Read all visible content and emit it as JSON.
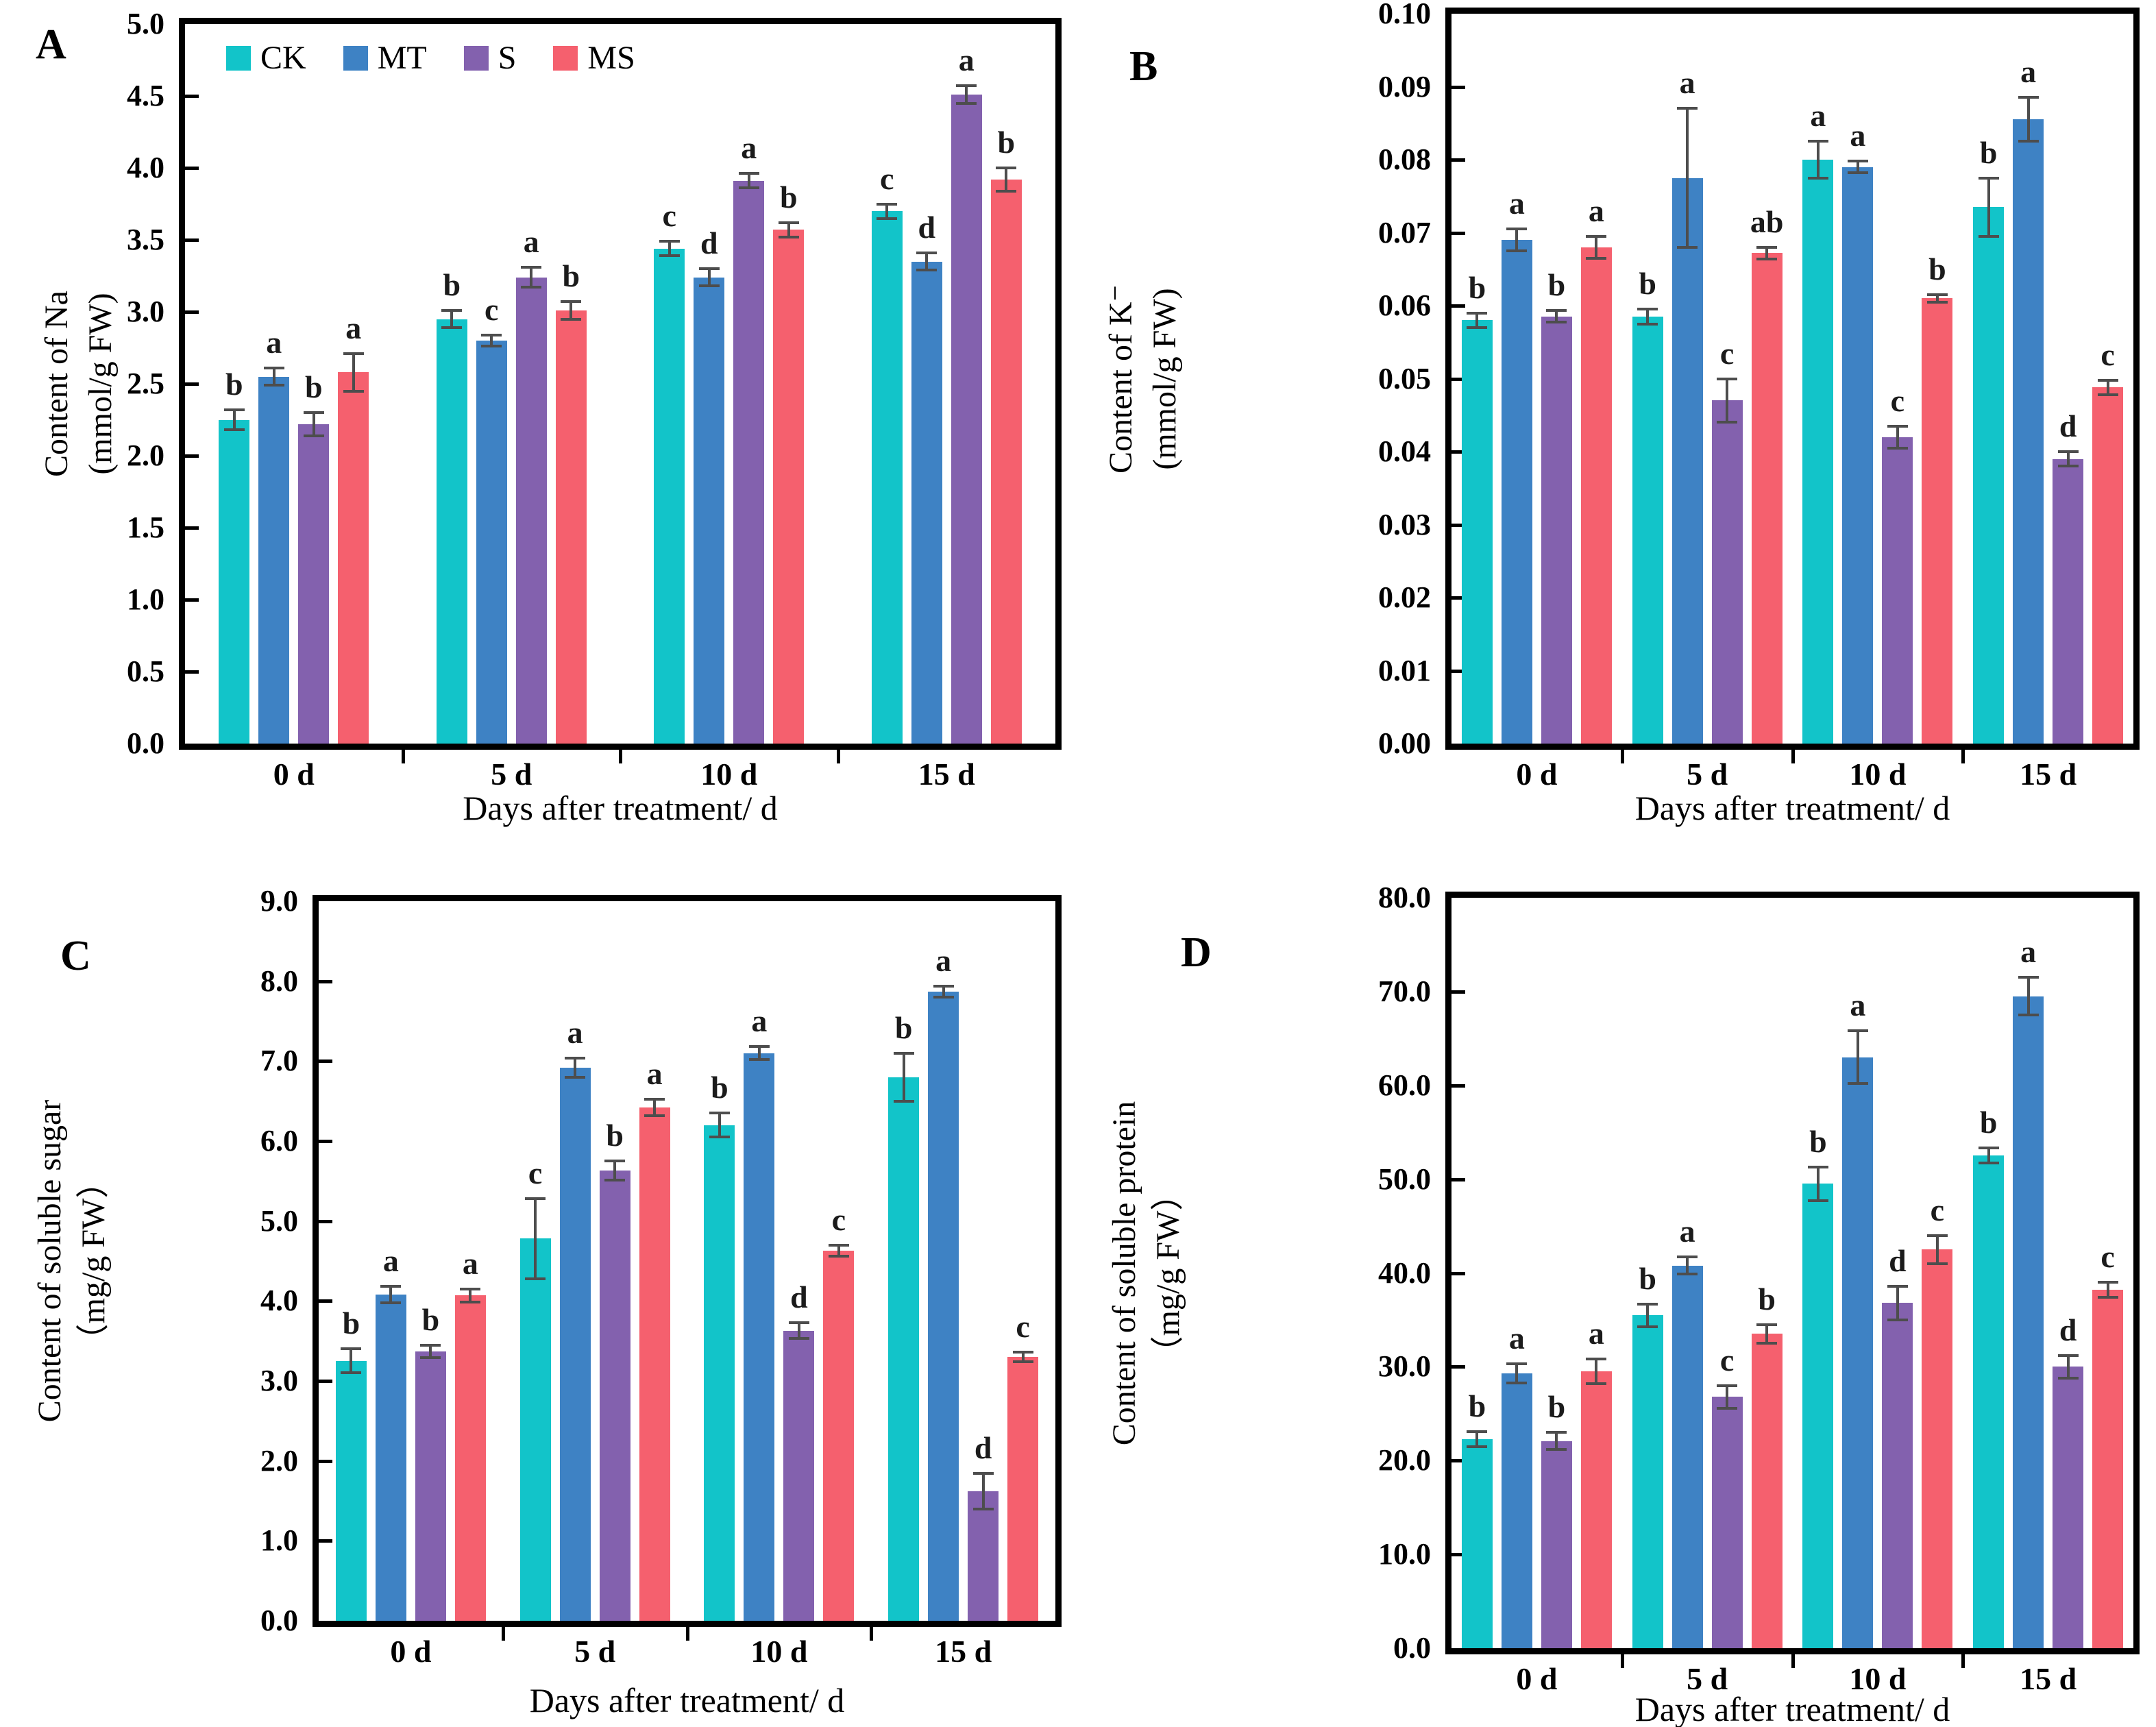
{
  "figure": {
    "background": "#ffffff",
    "panel_letters": [
      "A",
      "B",
      "C",
      "D"
    ]
  },
  "colors": {
    "frame": "#000000",
    "error_bar": "#4d4d4d",
    "sig_letter": "#1b1b1b",
    "background": "#ffffff"
  },
  "legend": {
    "location": "panel A top-left",
    "items": [
      {
        "label": "CK",
        "color": "#12C4C9"
      },
      {
        "label": "MT",
        "color": "#3E82C4"
      },
      {
        "label": "S",
        "color": "#8361AE"
      },
      {
        "label": "MS",
        "color": "#F5606E"
      }
    ]
  },
  "chart_data": [
    {
      "id": "A",
      "type": "bar",
      "title": "",
      "ylabel": [
        "Content of Na",
        "(mmol/g FW)"
      ],
      "xlabel": "Days after treatment/ d",
      "categories": [
        "0 d",
        "5 d",
        "10 d",
        "15 d"
      ],
      "ylim": [
        0,
        5.0
      ],
      "ytick_step": 0.5,
      "ytick_decimals": 1,
      "grid": false,
      "legend_position": "top-left",
      "series": [
        {
          "name": "CK",
          "color": "#12C4C9",
          "values": [
            2.25,
            2.95,
            3.44,
            3.7
          ],
          "errors": [
            0.07,
            0.06,
            0.05,
            0.05
          ],
          "sig_letters": [
            "b",
            "b",
            "c",
            "c"
          ]
        },
        {
          "name": "MT",
          "color": "#3E82C4",
          "values": [
            2.55,
            2.8,
            3.24,
            3.35
          ],
          "errors": [
            0.06,
            0.04,
            0.06,
            0.06
          ],
          "sig_letters": [
            "a",
            "c",
            "d",
            "d"
          ]
        },
        {
          "name": "S",
          "color": "#8361AE",
          "values": [
            2.22,
            3.24,
            3.91,
            4.51
          ],
          "errors": [
            0.08,
            0.07,
            0.05,
            0.06
          ],
          "sig_letters": [
            "b",
            "a",
            "a",
            "a"
          ]
        },
        {
          "name": "MS",
          "color": "#F5606E",
          "values": [
            2.58,
            3.01,
            3.57,
            3.92
          ],
          "errors": [
            0.13,
            0.06,
            0.05,
            0.08
          ],
          "sig_letters": [
            "a",
            "b",
            "b",
            "b"
          ]
        }
      ]
    },
    {
      "id": "B",
      "type": "bar",
      "title": "",
      "ylabel": [
        "Content of K⁻",
        "(mmol/g FW)"
      ],
      "xlabel": "Days after treatment/ d",
      "categories": [
        "0 d",
        "5 d",
        "10 d",
        "15 d"
      ],
      "ylim": [
        0,
        0.1
      ],
      "ytick_step": 0.01,
      "ytick_decimals": 2,
      "grid": false,
      "series": [
        {
          "name": "CK",
          "color": "#12C4C9",
          "values": [
            0.058,
            0.0585,
            0.08,
            0.0735
          ],
          "errors": [
            0.001,
            0.001,
            0.0025,
            0.004
          ],
          "sig_letters": [
            "b",
            "b",
            "a",
            "b"
          ]
        },
        {
          "name": "MT",
          "color": "#3E82C4",
          "values": [
            0.069,
            0.0775,
            0.079,
            0.0855
          ],
          "errors": [
            0.0015,
            0.0095,
            0.0008,
            0.003
          ],
          "sig_letters": [
            "a",
            "a",
            "a",
            "a"
          ]
        },
        {
          "name": "S",
          "color": "#8361AE",
          "values": [
            0.0585,
            0.047,
            0.042,
            0.039
          ],
          "errors": [
            0.0008,
            0.003,
            0.0015,
            0.001
          ],
          "sig_letters": [
            "b",
            "c",
            "c",
            "d"
          ]
        },
        {
          "name": "MS",
          "color": "#F5606E",
          "values": [
            0.068,
            0.0672,
            0.061,
            0.0488
          ],
          "errors": [
            0.0015,
            0.0008,
            0.0005,
            0.001
          ],
          "sig_letters": [
            "a",
            "ab",
            "b",
            "c"
          ]
        }
      ]
    },
    {
      "id": "C",
      "type": "bar",
      "title": "",
      "ylabel": [
        "Content of  soluble sugar",
        "（mg/g FW）"
      ],
      "xlabel": "Days after treatment/ d",
      "categories": [
        "0 d",
        "5 d",
        "10 d",
        "15 d"
      ],
      "ylim": [
        0,
        9.0
      ],
      "ytick_step": 1.0,
      "ytick_decimals": 1,
      "grid": false,
      "series": [
        {
          "name": "CK",
          "color": "#12C4C9",
          "values": [
            3.25,
            4.78,
            6.2,
            6.8
          ],
          "errors": [
            0.15,
            0.5,
            0.15,
            0.3
          ],
          "sig_letters": [
            "b",
            "c",
            "b",
            "b"
          ]
        },
        {
          "name": "MT",
          "color": "#3E82C4",
          "values": [
            4.08,
            6.92,
            7.1,
            7.87
          ],
          "errors": [
            0.1,
            0.12,
            0.08,
            0.07
          ],
          "sig_letters": [
            "a",
            "a",
            "a",
            "a"
          ]
        },
        {
          "name": "S",
          "color": "#8361AE",
          "values": [
            3.37,
            5.63,
            3.63,
            1.62
          ],
          "errors": [
            0.08,
            0.12,
            0.1,
            0.22
          ],
          "sig_letters": [
            "b",
            "b",
            "d",
            "d"
          ]
        },
        {
          "name": "MS",
          "color": "#F5606E",
          "values": [
            4.07,
            6.42,
            4.63,
            3.3
          ],
          "errors": [
            0.08,
            0.1,
            0.07,
            0.06
          ],
          "sig_letters": [
            "a",
            "a",
            "c",
            "c"
          ]
        }
      ]
    },
    {
      "id": "D",
      "type": "bar",
      "title": "",
      "ylabel": [
        "Content of soluble protein",
        "（mg/g FW）"
      ],
      "xlabel": "Days after treatment/ d",
      "categories": [
        "0 d",
        "5 d",
        "10 d",
        "15 d"
      ],
      "ylim": [
        0,
        80.0
      ],
      "ytick_step": 10.0,
      "ytick_decimals": 1,
      "grid": false,
      "series": [
        {
          "name": "CK",
          "color": "#12C4C9",
          "values": [
            22.3,
            35.5,
            49.5,
            52.5
          ],
          "errors": [
            0.8,
            1.2,
            1.8,
            0.8
          ],
          "sig_letters": [
            "b",
            "b",
            "b",
            "b"
          ]
        },
        {
          "name": "MT",
          "color": "#3E82C4",
          "values": [
            29.3,
            40.8,
            63.0,
            69.5
          ],
          "errors": [
            1.0,
            0.9,
            2.8,
            2.0
          ],
          "sig_letters": [
            "a",
            "a",
            "a",
            "a"
          ]
        },
        {
          "name": "S",
          "color": "#8361AE",
          "values": [
            22.1,
            26.8,
            36.8,
            30.0
          ],
          "errors": [
            0.9,
            1.2,
            1.8,
            1.2
          ],
          "sig_letters": [
            "b",
            "c",
            "d",
            "d"
          ]
        },
        {
          "name": "MS",
          "color": "#F5606E",
          "values": [
            29.5,
            33.5,
            42.5,
            38.2
          ],
          "errors": [
            1.3,
            1.0,
            1.5,
            0.8
          ],
          "sig_letters": [
            "a",
            "b",
            "c",
            "c"
          ]
        }
      ]
    }
  ]
}
